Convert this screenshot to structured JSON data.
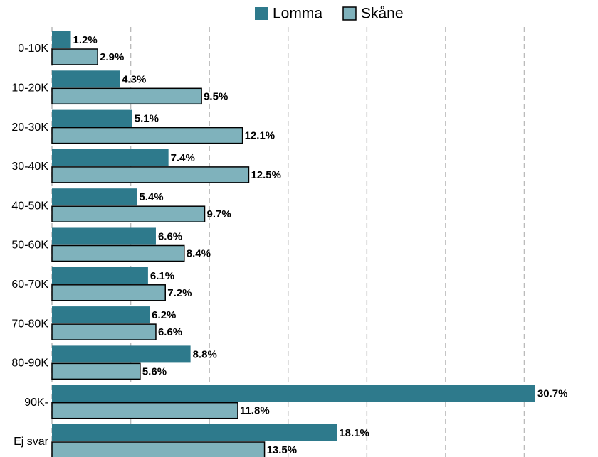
{
  "chart_data": {
    "type": "hbar",
    "categories": [
      "0-10K",
      "10-20K",
      "20-30K",
      "30-40K",
      "40-50K",
      "50-60K",
      "60-70K",
      "70-80K",
      "80-90K",
      "90K-",
      "Ej svar"
    ],
    "series": [
      {
        "name": "Lomma",
        "color": "#2e7a8c",
        "values": [
          1.2,
          4.3,
          5.1,
          7.4,
          5.4,
          6.6,
          6.1,
          6.2,
          8.8,
          30.7,
          18.1
        ],
        "value_labels": [
          "1.2%",
          "4.3%",
          "5.1%",
          "7.4%",
          "5.4%",
          "6.6%",
          "6.1%",
          "6.2%",
          "8.8%",
          "30.7%",
          "18.1%"
        ]
      },
      {
        "name": "Skåne",
        "color": "#7fb2bc",
        "values": [
          2.9,
          9.5,
          12.1,
          12.5,
          9.7,
          8.4,
          7.2,
          6.6,
          5.6,
          11.8,
          13.5
        ],
        "value_labels": [
          "2.9%",
          "9.5%",
          "12.1%",
          "12.5%",
          "9.7%",
          "8.4%",
          "7.2%",
          "6.6%",
          "5.6%",
          "11.8%",
          "13.5%"
        ]
      }
    ],
    "xlim": [
      0,
      34.5
    ],
    "xticks": [
      0,
      5,
      10,
      15,
      20,
      25,
      30
    ],
    "grid": true
  }
}
